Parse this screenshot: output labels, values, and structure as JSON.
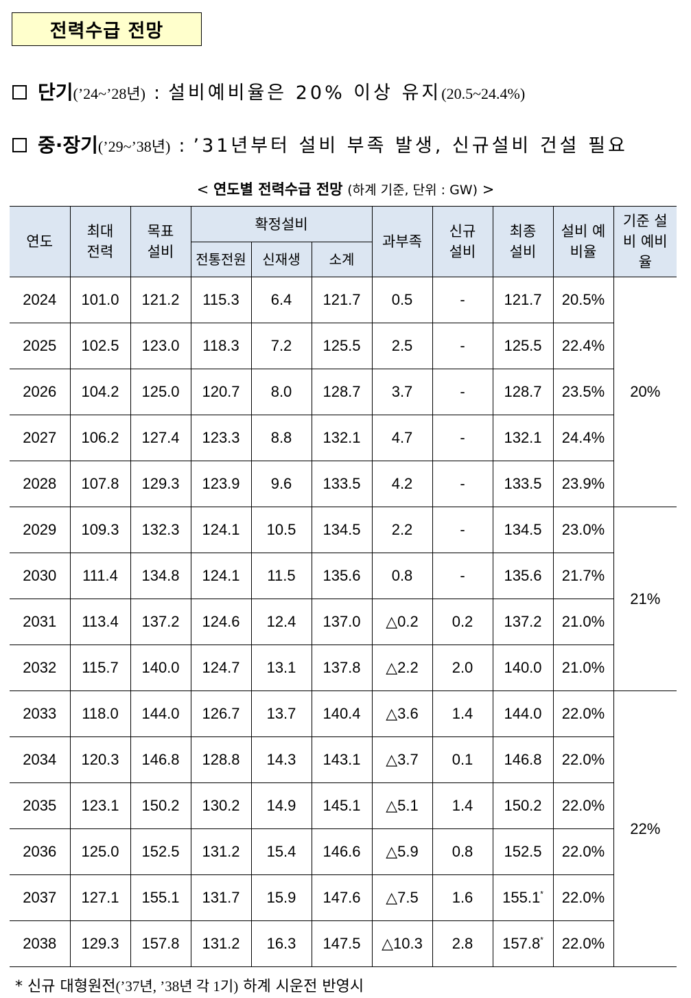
{
  "title": "전력수급 전망",
  "bullets": [
    {
      "term": "단기",
      "period": "(’24~’28년)",
      "colon": ":",
      "text": "설비예비율은 20% 이상 유지",
      "sub": "(20.5~24.4%)"
    },
    {
      "term": "중·장기",
      "period": "(’29~’38년)",
      "colon": ":",
      "text": "’31년부터 설비 부족 발생, 신규설비 건설 필요",
      "sub": ""
    }
  ],
  "caption": {
    "open": "<",
    "main": "연도별 전력수급 전망",
    "sub": "(하계 기준, 단위 : GW)",
    "close": ">"
  },
  "table": {
    "headers": {
      "year": "연도",
      "peak": "최대 전력",
      "target": "목표 설비",
      "confirmed": "확정설비",
      "conventional": "전통전원",
      "renewable": "신재생",
      "subtotal": "소계",
      "surplus": "과부족",
      "new": "신규 설비",
      "final": "최종 설비",
      "reserve": "설비 예비율",
      "standard": "기준 설비 예비율"
    },
    "rows": [
      {
        "year": "2024",
        "peak": "101.0",
        "target": "121.2",
        "conv": "115.3",
        "renew": "6.4",
        "subtotal": "121.7",
        "surplus": "0.5",
        "new": "-",
        "final": "121.7",
        "reserve": "20.5%"
      },
      {
        "year": "2025",
        "peak": "102.5",
        "target": "123.0",
        "conv": "118.3",
        "renew": "7.2",
        "subtotal": "125.5",
        "surplus": "2.5",
        "new": "-",
        "final": "125.5",
        "reserve": "22.4%"
      },
      {
        "year": "2026",
        "peak": "104.2",
        "target": "125.0",
        "conv": "120.7",
        "renew": "8.0",
        "subtotal": "128.7",
        "surplus": "3.7",
        "new": "-",
        "final": "128.7",
        "reserve": "23.5%"
      },
      {
        "year": "2027",
        "peak": "106.2",
        "target": "127.4",
        "conv": "123.3",
        "renew": "8.8",
        "subtotal": "132.1",
        "surplus": "4.7",
        "new": "-",
        "final": "132.1",
        "reserve": "24.4%"
      },
      {
        "year": "2028",
        "peak": "107.8",
        "target": "129.3",
        "conv": "123.9",
        "renew": "9.6",
        "subtotal": "133.5",
        "surplus": "4.2",
        "new": "-",
        "final": "133.5",
        "reserve": "23.9%"
      },
      {
        "year": "2029",
        "peak": "109.3",
        "target": "132.3",
        "conv": "124.1",
        "renew": "10.5",
        "subtotal": "134.5",
        "surplus": "2.2",
        "new": "-",
        "final": "134.5",
        "reserve": "23.0%"
      },
      {
        "year": "2030",
        "peak": "111.4",
        "target": "134.8",
        "conv": "124.1",
        "renew": "11.5",
        "subtotal": "135.6",
        "surplus": "0.8",
        "new": "-",
        "final": "135.6",
        "reserve": "21.7%"
      },
      {
        "year": "2031",
        "peak": "113.4",
        "target": "137.2",
        "conv": "124.6",
        "renew": "12.4",
        "subtotal": "137.0",
        "surplus": "△0.2",
        "new": "0.2",
        "final": "137.2",
        "reserve": "21.0%"
      },
      {
        "year": "2032",
        "peak": "115.7",
        "target": "140.0",
        "conv": "124.7",
        "renew": "13.1",
        "subtotal": "137.8",
        "surplus": "△2.2",
        "new": "2.0",
        "final": "140.0",
        "reserve": "21.0%"
      },
      {
        "year": "2033",
        "peak": "118.0",
        "target": "144.0",
        "conv": "126.7",
        "renew": "13.7",
        "subtotal": "140.4",
        "surplus": "△3.6",
        "new": "1.4",
        "final": "144.0",
        "reserve": "22.0%"
      },
      {
        "year": "2034",
        "peak": "120.3",
        "target": "146.8",
        "conv": "128.8",
        "renew": "14.3",
        "subtotal": "143.1",
        "surplus": "△3.7",
        "new": "0.1",
        "final": "146.8",
        "reserve": "22.0%"
      },
      {
        "year": "2035",
        "peak": "123.1",
        "target": "150.2",
        "conv": "130.2",
        "renew": "14.9",
        "subtotal": "145.1",
        "surplus": "△5.1",
        "new": "1.4",
        "final": "150.2",
        "reserve": "22.0%"
      },
      {
        "year": "2036",
        "peak": "125.0",
        "target": "152.5",
        "conv": "131.2",
        "renew": "15.4",
        "subtotal": "146.6",
        "surplus": "△5.9",
        "new": "0.8",
        "final": "152.5",
        "reserve": "22.0%"
      },
      {
        "year": "2037",
        "peak": "127.1",
        "target": "155.1",
        "conv": "131.7",
        "renew": "15.9",
        "subtotal": "147.6",
        "surplus": "△7.5",
        "new": "1.6",
        "final": "155.1",
        "final_mark": "*",
        "reserve": "22.0%"
      },
      {
        "year": "2038",
        "peak": "129.3",
        "target": "157.8",
        "conv": "131.2",
        "renew": "16.3",
        "subtotal": "147.5",
        "surplus": "△10.3",
        "new": "2.8",
        "final": "157.8",
        "final_mark": "*",
        "reserve": "22.0%"
      }
    ],
    "standard_groups": [
      {
        "value": "20%",
        "span": 5
      },
      {
        "value": "21%",
        "span": 4
      },
      {
        "value": "22%",
        "span": 6
      }
    ]
  },
  "footnote": {
    "mark": "*",
    "text_a": "신규 대형원전",
    "text_b": "(’37년, ’38년 각 1기)",
    "text_c": "하계 시운전 반영시"
  }
}
